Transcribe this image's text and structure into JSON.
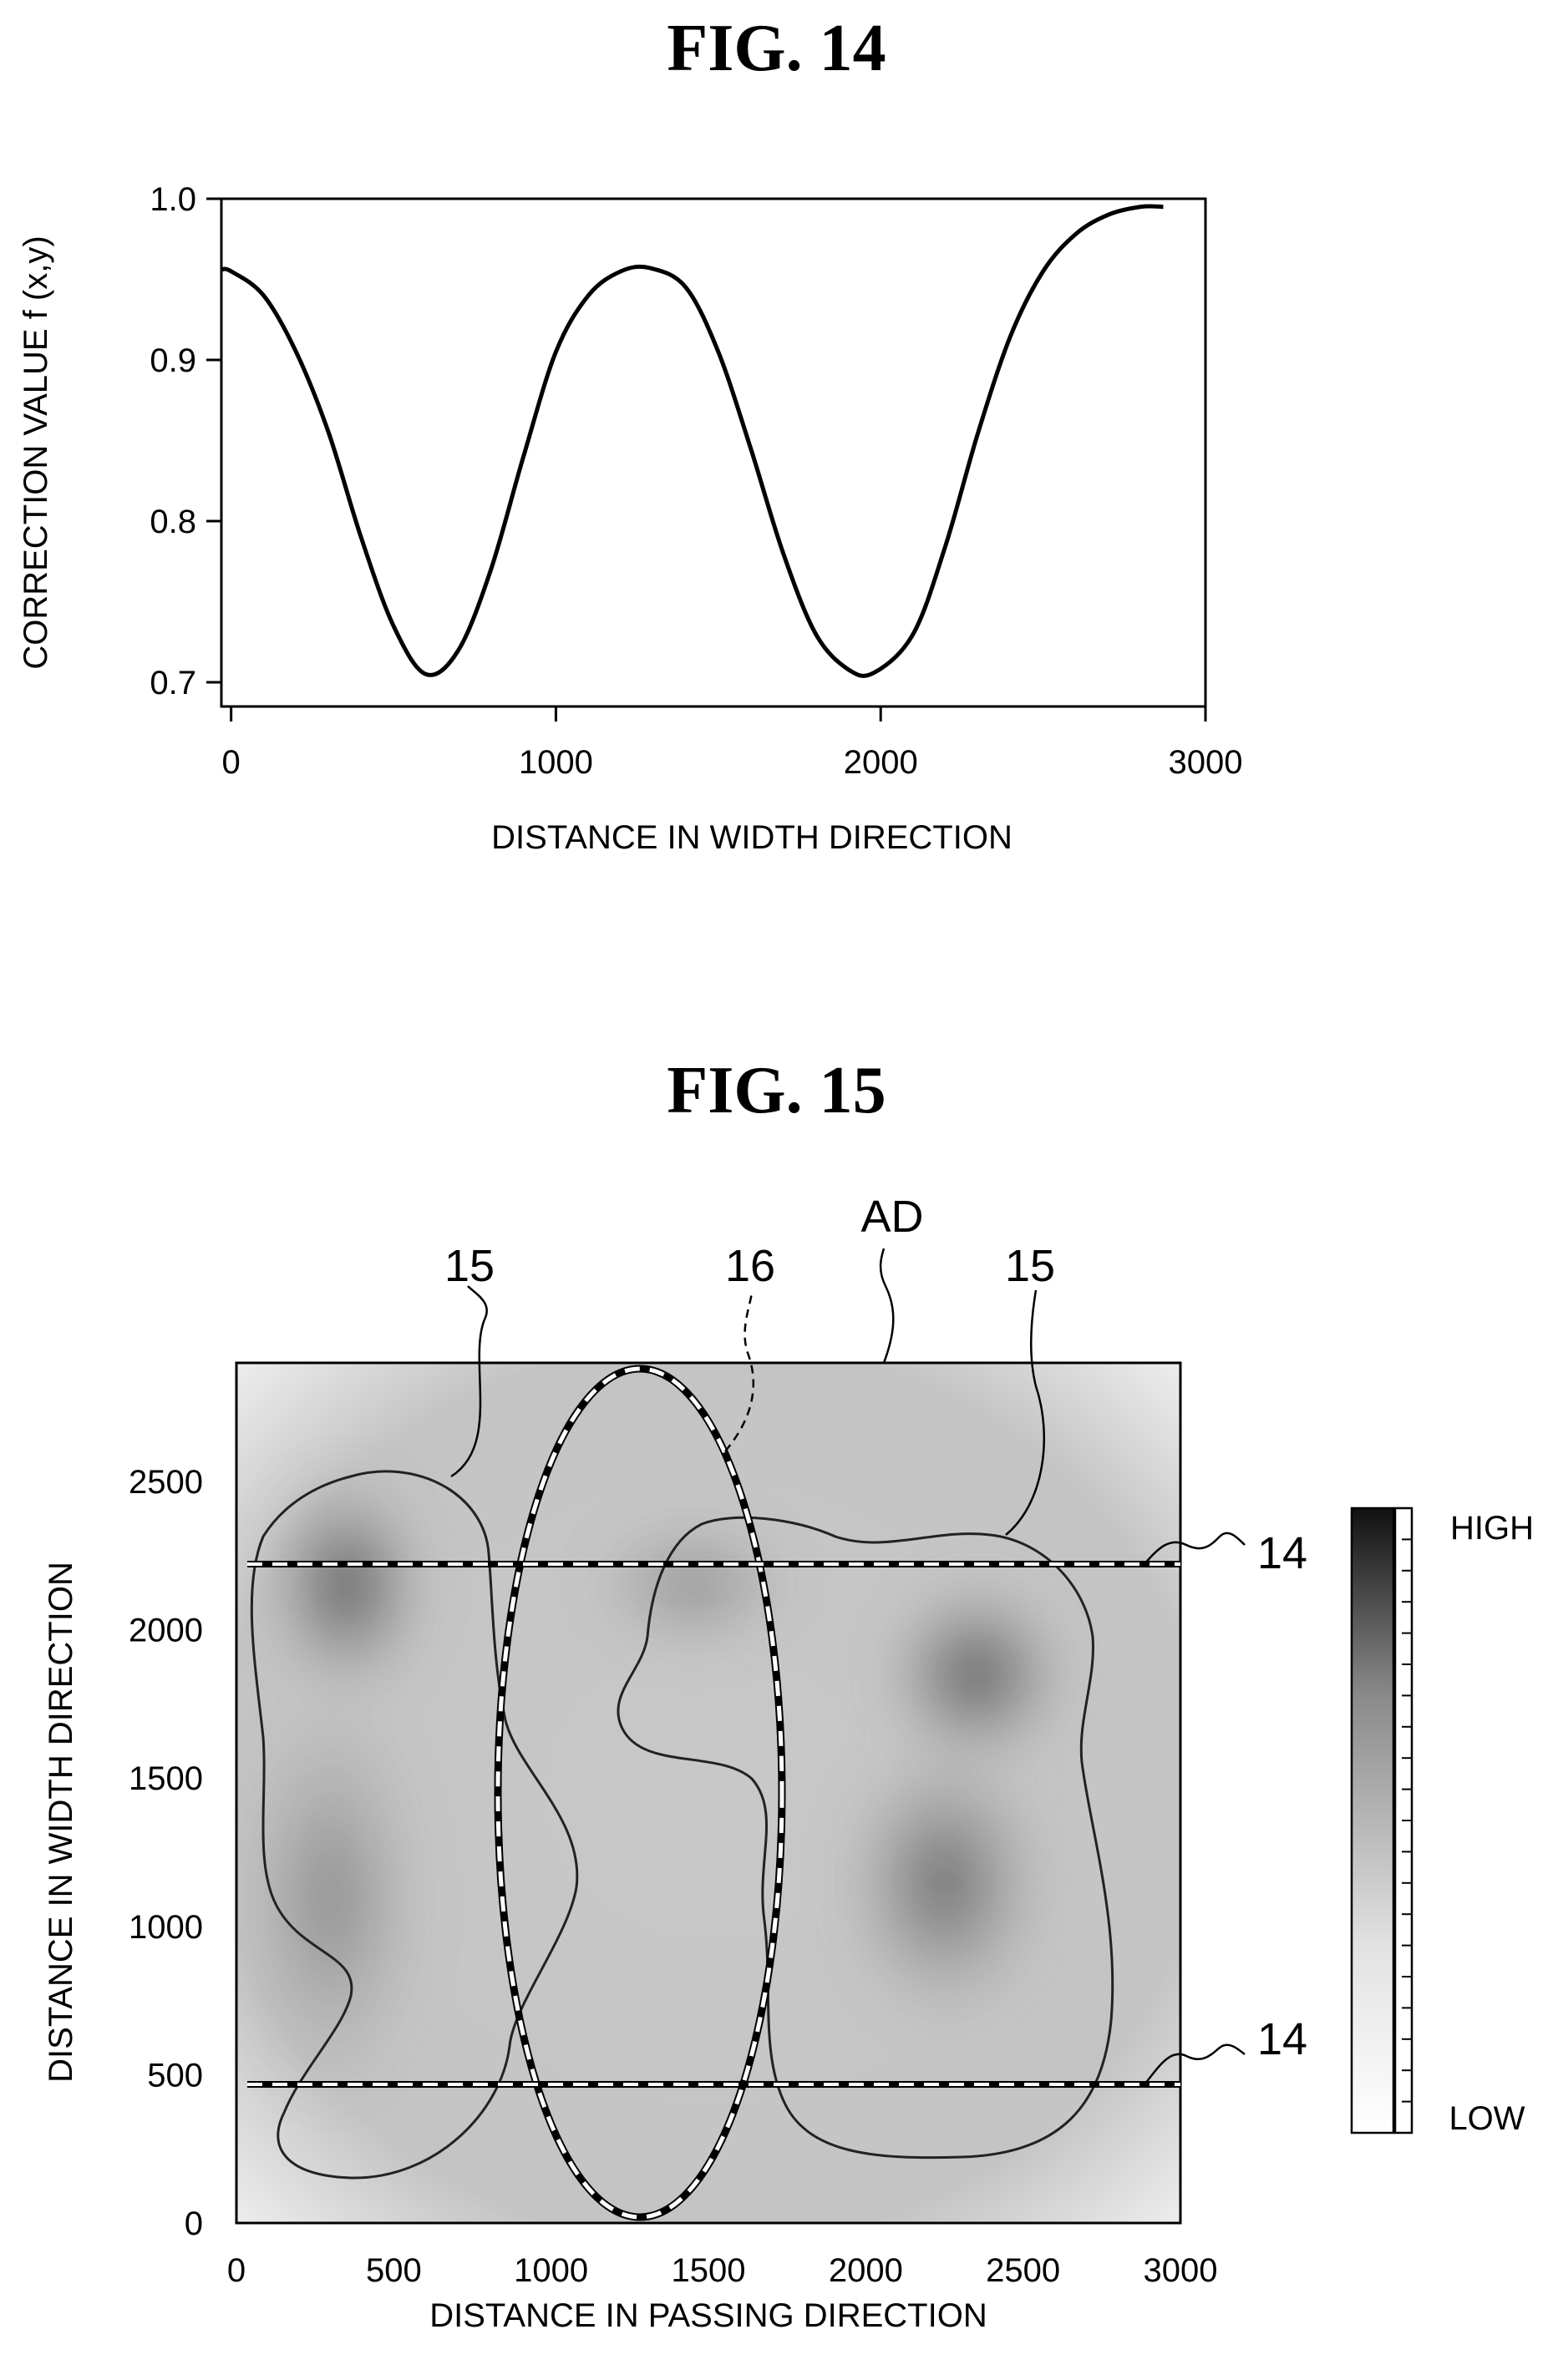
{
  "fig14": {
    "title": "FIG. 14",
    "chart_data": {
      "type": "line",
      "xlabel": "DISTANCE IN WIDTH DIRECTION",
      "ylabel": "CORRECTION VALUE f (x,y)",
      "xlim": [
        -30,
        3000
      ],
      "ylim": [
        0.685,
        1.0
      ],
      "xticks": [
        "0",
        "1000",
        "2000",
        "3000"
      ],
      "xtick_values": [
        0,
        1000,
        2000,
        3000
      ],
      "yticks": [
        "0.7",
        "0.8",
        "0.9",
        "1.0"
      ],
      "ytick_values": [
        0.7,
        0.8,
        0.9,
        1.0
      ],
      "series": [
        {
          "x": [
            -30,
            0,
            100,
            200,
            300,
            400,
            500,
            600,
            700,
            800,
            900,
            1000,
            1100,
            1200,
            1290,
            1400,
            1500,
            1600,
            1700,
            1800,
            1900,
            1980,
            2100,
            2200,
            2300,
            2400,
            2500,
            2600,
            2700,
            2800,
            2870
          ],
          "y": [
            0.956,
            0.955,
            0.94,
            0.905,
            0.855,
            0.79,
            0.735,
            0.705,
            0.72,
            0.77,
            0.84,
            0.905,
            0.94,
            0.955,
            0.957,
            0.945,
            0.905,
            0.845,
            0.78,
            0.73,
            0.708,
            0.706,
            0.73,
            0.785,
            0.855,
            0.915,
            0.955,
            0.978,
            0.99,
            0.995,
            0.995
          ]
        }
      ]
    }
  },
  "fig15": {
    "title": "FIG. 15",
    "chart_data": {
      "type": "heatmap",
      "xlabel": "DISTANCE IN PASSING DIRECTION",
      "ylabel": "DISTANCE IN WIDTH DIRECTION",
      "xlim": [
        0,
        3000
      ],
      "ylim": [
        0,
        2900
      ],
      "xticks": [
        "0",
        "500",
        "1000",
        "1500",
        "2000",
        "2500",
        "3000"
      ],
      "xtick_values": [
        0,
        500,
        1000,
        1500,
        2000,
        2500,
        3000
      ],
      "yticks": [
        "0",
        "500",
        "1000",
        "1500",
        "2000",
        "2500"
      ],
      "ytick_values": [
        0,
        500,
        1000,
        1500,
        2000,
        2500
      ],
      "colorbar": {
        "high": "HIGH",
        "low": "LOW",
        "high_color": "#111111",
        "low_color": "#ffffff"
      },
      "hotspots": [
        {
          "x": 350,
          "y": 2150,
          "intensity": 0.85,
          "rx": 260,
          "ry": 380
        },
        {
          "x": 2350,
          "y": 1850,
          "intensity": 0.85,
          "rx": 300,
          "ry": 320
        },
        {
          "x": 2250,
          "y": 1150,
          "intensity": 0.7,
          "rx": 330,
          "ry": 480
        },
        {
          "x": 300,
          "y": 1100,
          "intensity": 0.45,
          "rx": 300,
          "ry": 700
        },
        {
          "x": 1450,
          "y": 2150,
          "intensity": 0.45,
          "rx": 330,
          "ry": 220
        }
      ],
      "dashed_lines_y": [
        2100,
        470
      ],
      "ellipse": {
        "cx": 1290,
        "cy": 1450,
        "rx": 450,
        "ry": 1450
      }
    },
    "references": {
      "region_left": "15",
      "region_right": "15",
      "ellipse": "16",
      "image": "AD",
      "line_top": "14",
      "line_bottom": "14"
    }
  }
}
